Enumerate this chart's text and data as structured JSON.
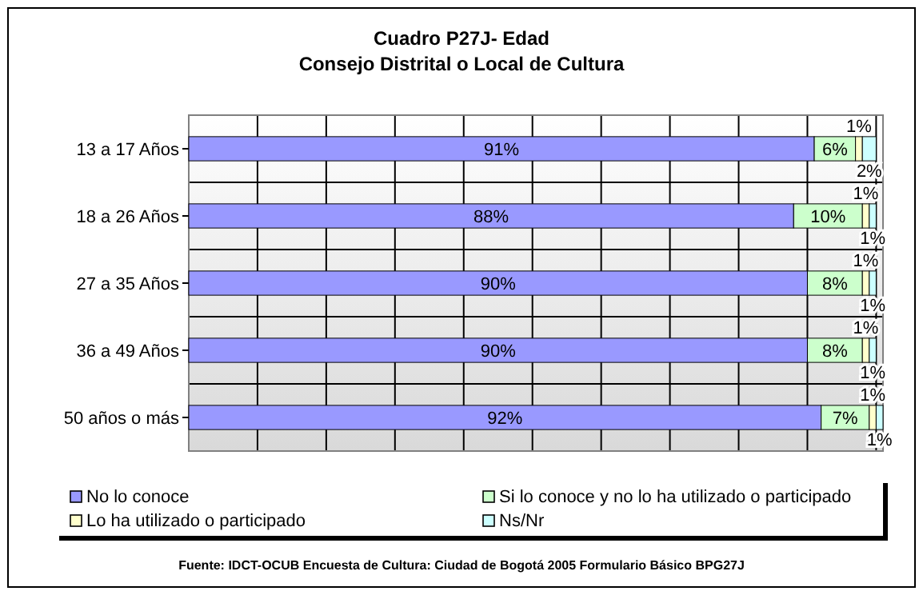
{
  "chart_data": {
    "type": "bar",
    "orientation": "horizontal",
    "stacked": true,
    "title": "Cuadro P27J- Edad",
    "subtitle": "Consejo Distrital o Local de Cultura",
    "categories": [
      "13 a 17 Años",
      "18 a 26 Años",
      "27 a 35 Años",
      "36 a 49 Años",
      "50 años o más"
    ],
    "series": [
      {
        "name": "No lo conoce",
        "color": "#9999ff",
        "values": [
          91,
          88,
          90,
          90,
          92
        ],
        "value_labels": [
          "91%",
          "88%",
          "90%",
          "90%",
          "92%"
        ]
      },
      {
        "name": "Si lo conoce y no lo ha utilizado o participado",
        "color": "#ccffcc",
        "values": [
          6,
          10,
          8,
          8,
          7
        ],
        "value_labels": [
          "6%",
          "10%",
          "8%",
          "8%",
          "7%"
        ]
      },
      {
        "name": "Lo ha utilizado o participado",
        "color": "#ffffcc",
        "values": [
          1,
          1,
          1,
          1,
          1
        ],
        "value_labels": [
          "1%",
          "1%",
          "1%",
          "1%",
          "1%"
        ]
      },
      {
        "name": "Ns/Nr",
        "color": "#ccffff",
        "values": [
          2,
          1,
          1,
          1,
          1
        ],
        "value_labels": [
          "2%",
          "1%",
          "1%",
          "1%",
          "1%"
        ]
      }
    ],
    "xlim": [
      0,
      101
    ],
    "xticks": [
      {
        "value": 0,
        "label": null
      },
      {
        "value": 10,
        "label": null
      },
      {
        "value": 20,
        "label": null
      },
      {
        "value": 30,
        "label": null
      },
      {
        "value": 40,
        "label": null
      },
      {
        "value": 50,
        "label": null
      },
      {
        "value": 60,
        "label": null
      },
      {
        "value": 70,
        "label": null
      },
      {
        "value": 80,
        "label": null
      },
      {
        "value": 90,
        "label": null
      },
      {
        "value": 100,
        "label": null
      }
    ],
    "tick_labels": "y",
    "grid": true,
    "legend": "bottom",
    "annotations": [
      "Fuente: IDCT-OCUB Encuesta de Cultura: Ciudad de Bogotá 2005 Formulario Básico BPG27J"
    ]
  }
}
